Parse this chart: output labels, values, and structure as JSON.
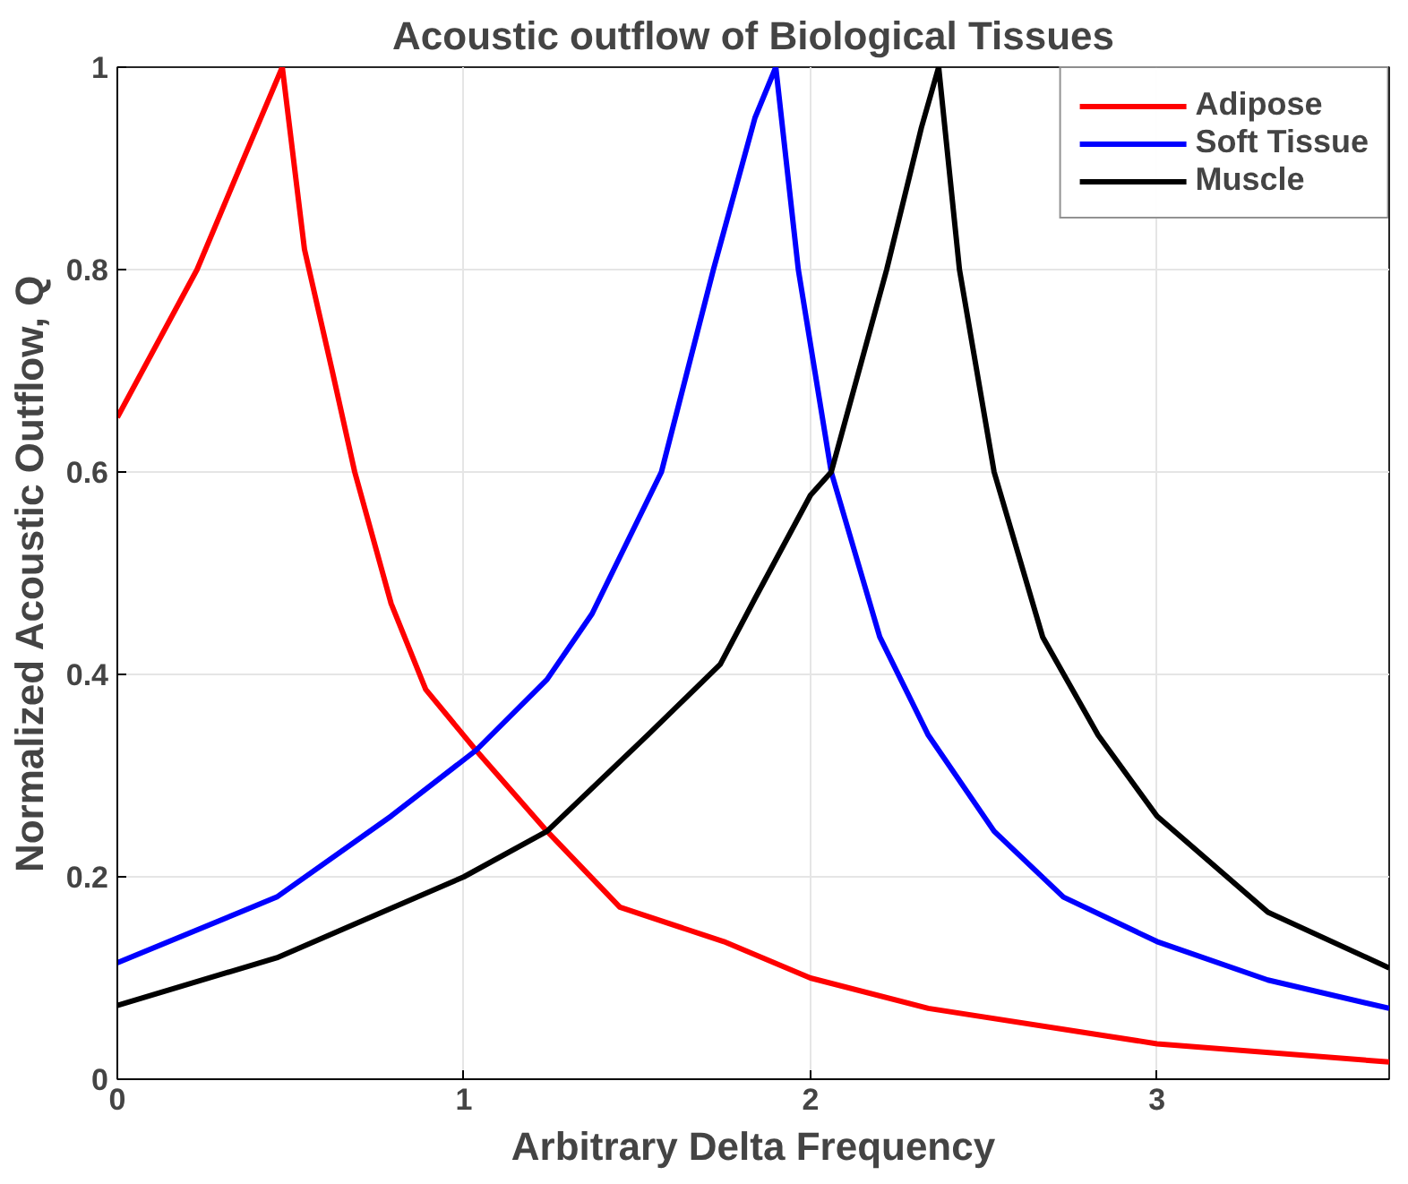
{
  "chart_data": {
    "type": "line",
    "title": "Acoustic outflow of Biological Tissues",
    "xlabel": "Arbitrary Delta Frequency",
    "ylabel": "Normalized Acoustic Outflow, Q",
    "xlim": [
      0,
      3.67
    ],
    "ylim": [
      0,
      1
    ],
    "xticks": [
      0,
      1,
      2,
      3
    ],
    "yticks": [
      0,
      0.2,
      0.4,
      0.6,
      0.8,
      1
    ],
    "grid": true,
    "legend": "top right",
    "line_style": "solid",
    "marker": "none",
    "series": [
      {
        "name": "Adipose",
        "color": "#ff0000",
        "x": [
          0,
          0.23,
          0.365,
          0.476,
          0.54,
          0.62,
          0.685,
          0.79,
          0.89,
          1.035,
          1.24,
          1.45,
          1.75,
          2,
          2.34,
          3,
          3.67
        ],
        "values": [
          0.654,
          0.8,
          0.91,
          1,
          0.82,
          0.7,
          0.6,
          0.47,
          0.385,
          0.325,
          0.245,
          0.17,
          0.136,
          0.1,
          0.07,
          0.035,
          0.017
        ]
      },
      {
        "name": "Soft Tissue",
        "color": "#0000ff",
        "x": [
          0,
          0.46,
          0.79,
          1.035,
          1.24,
          1.37,
          1.57,
          1.72,
          1.84,
          1.9,
          1.965,
          2.06,
          2.2,
          2.34,
          2.53,
          2.73,
          3,
          3.32,
          3.67
        ],
        "values": [
          0.115,
          0.18,
          0.26,
          0.325,
          0.395,
          0.46,
          0.6,
          0.8,
          0.95,
          1,
          0.8,
          0.6,
          0.437,
          0.34,
          0.245,
          0.18,
          0.136,
          0.098,
          0.07
        ]
      },
      {
        "name": "Muscle",
        "color": "#000000",
        "x": [
          0,
          0.46,
          1,
          1.24,
          1.53,
          1.74,
          1.84,
          2,
          2.06,
          2.22,
          2.32,
          2.37,
          2.43,
          2.53,
          2.67,
          2.83,
          3,
          3.32,
          3.67
        ],
        "values": [
          0.073,
          0.12,
          0.2,
          0.245,
          0.34,
          0.41,
          0.475,
          0.577,
          0.6,
          0.8,
          0.94,
          1,
          0.8,
          0.6,
          0.437,
          0.34,
          0.26,
          0.165,
          0.11
        ]
      }
    ]
  }
}
